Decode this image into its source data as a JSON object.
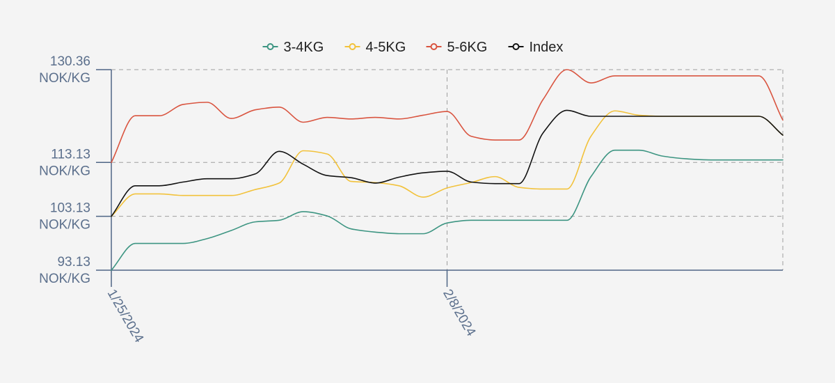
{
  "chart_data": {
    "type": "line",
    "title": "",
    "xlabel": "",
    "ylabel": "",
    "x": [
      "1/25/2024",
      "1/26/2024",
      "1/27/2024",
      "1/28/2024",
      "1/29/2024",
      "1/30/2024",
      "1/31/2024",
      "2/1/2024",
      "2/2/2024",
      "2/3/2024",
      "2/4/2024",
      "2/5/2024",
      "2/6/2024",
      "2/7/2024",
      "2/8/2024",
      "2/9/2024",
      "2/10/2024",
      "2/11/2024",
      "2/12/2024",
      "2/13/2024",
      "2/14/2024",
      "2/15/2024",
      "2/16/2024",
      "2/17/2024",
      "2/18/2024",
      "2/19/2024",
      "2/20/2024",
      "2/21/2024",
      "2/22/2024"
    ],
    "x_tick_labels": [
      "1/25/2024",
      "2/8/2024"
    ],
    "x_tick_indices": [
      0,
      14
    ],
    "ylim": [
      93.13,
      130.36
    ],
    "y_ticks": [
      {
        "value": 130.36,
        "line1": "130.36",
        "line2": "NOK/KG"
      },
      {
        "value": 113.13,
        "line1": "113.13",
        "line2": "NOK/KG"
      },
      {
        "value": 103.13,
        "line1": "103.13",
        "line2": "NOK/KG"
      },
      {
        "value": 93.13,
        "line1": "93.13",
        "line2": "NOK/KG"
      }
    ],
    "grid": true,
    "legend_position": "top-center",
    "series": [
      {
        "name": "3-4KG",
        "color": "#3d9582",
        "values": [
          93.13,
          98.1,
          98.1,
          98.1,
          99.0,
          100.5,
          102.1,
          102.4,
          104.0,
          103.2,
          100.8,
          100.2,
          99.9,
          99.9,
          101.9,
          102.4,
          102.4,
          102.4,
          102.4,
          102.4,
          110.5,
          115.4,
          115.4,
          114.3,
          113.8,
          113.6,
          113.6,
          113.6,
          113.6
        ]
      },
      {
        "name": "4-5KG",
        "color": "#f2c23b",
        "values": [
          103.13,
          107.3,
          107.3,
          107.0,
          107.0,
          107.0,
          108.1,
          109.3,
          115.3,
          114.7,
          109.6,
          109.4,
          108.8,
          106.7,
          108.4,
          109.4,
          110.5,
          108.5,
          108.2,
          108.2,
          118.0,
          122.7,
          121.9,
          121.7,
          121.7,
          121.7,
          121.7,
          121.7,
          118.2
        ]
      },
      {
        "name": "5-6KG",
        "color": "#d9543f",
        "values": [
          113.13,
          121.8,
          121.8,
          123.9,
          124.3,
          121.3,
          122.9,
          123.4,
          120.6,
          121.5,
          121.2,
          121.5,
          121.2,
          121.9,
          122.6,
          118.0,
          117.3,
          117.3,
          124.8,
          130.36,
          127.9,
          129.2,
          129.2,
          129.2,
          129.2,
          129.2,
          129.2,
          129.2,
          121.0
        ]
      },
      {
        "name": "Index",
        "color": "#111111",
        "values": [
          103.13,
          108.8,
          108.8,
          109.5,
          110.1,
          110.1,
          111.0,
          115.2,
          112.8,
          110.7,
          110.3,
          109.3,
          110.4,
          111.2,
          111.5,
          109.5,
          109.2,
          109.2,
          118.6,
          122.8,
          121.7,
          121.7,
          121.7,
          121.7,
          121.7,
          121.7,
          121.7,
          121.7,
          118.2
        ]
      }
    ]
  }
}
